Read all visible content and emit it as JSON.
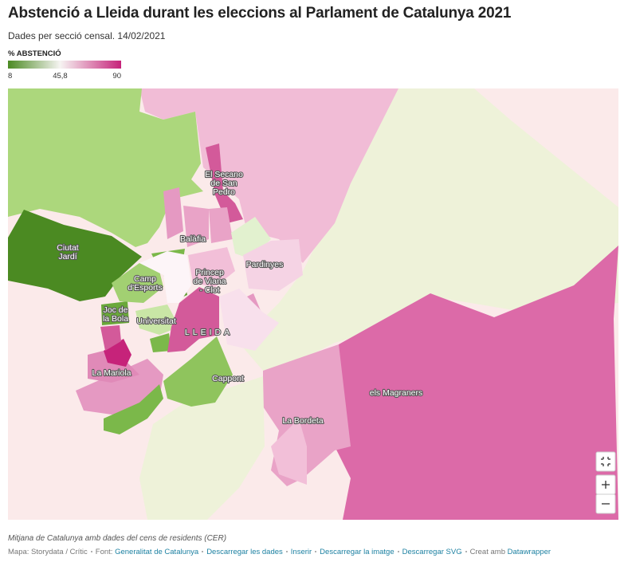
{
  "header": {
    "title": "Abstenció a Lleida durant les eleccions al Parlament de Catalunya 2021",
    "subtitle": "Dades per secció censal. 14/02/2021"
  },
  "legend": {
    "title": "% ABSTENCIÓ",
    "ticks": [
      8,
      {
        "value": 45.8,
        "label": "45,8"
      },
      90
    ],
    "colors": [
      "#4b8a22",
      "#f6f4f2",
      "#c6237a"
    ]
  },
  "map": {
    "labels": [
      {
        "lines": [
          "El Secano",
          "de San",
          "Pedro"
        ]
      },
      {
        "lines": [
          "Ciutat",
          "Jardí"
        ]
      },
      {
        "lines": [
          "Balàfia"
        ]
      },
      {
        "lines": [
          "Pardinyes"
        ]
      },
      {
        "lines": [
          "Camp",
          "d'Esports"
        ]
      },
      {
        "lines": [
          "Princep",
          "de Viana",
          "- Clot"
        ]
      },
      {
        "lines": [
          "Joc de",
          "la Bola"
        ]
      },
      {
        "lines": [
          "Universitat"
        ]
      },
      {
        "lines": [
          "LLEIDA"
        ]
      },
      {
        "lines": [
          "La Mariola"
        ]
      },
      {
        "lines": [
          "Cappont"
        ]
      },
      {
        "lines": [
          "els Magraners"
        ]
      },
      {
        "lines": [
          "La Bordeta"
        ]
      }
    ]
  },
  "footer": {
    "note": "Mitjana de Catalunya amb dades del cens de residents (CER)",
    "credit": "Mapa: Storydata / Crític",
    "source_label": "Font:",
    "source": "Generalitat de Catalunya",
    "links": [
      "Descarregar les dades",
      "Inserir",
      "Descarregar la imatge",
      "Descarregar SVG"
    ],
    "made_with": "Creat amb",
    "tool": "Datawrapper"
  }
}
